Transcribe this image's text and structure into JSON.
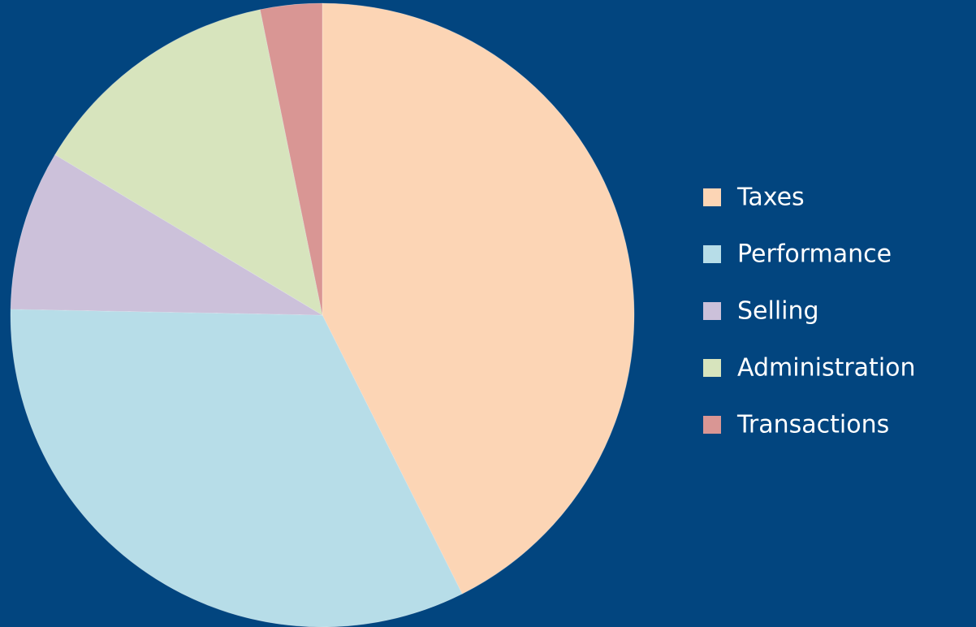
{
  "chart_data": {
    "type": "pie",
    "categories": [
      "Taxes",
      "Performance",
      "Selling",
      "Administration",
      "Transactions"
    ],
    "values": [
      42.6,
      32.7,
      8.3,
      13.2,
      3.2
    ],
    "colors": [
      "#fcd5b5",
      "#b7dde8",
      "#ccc1da",
      "#d7e4bd",
      "#d99694"
    ],
    "legend": "right"
  }
}
